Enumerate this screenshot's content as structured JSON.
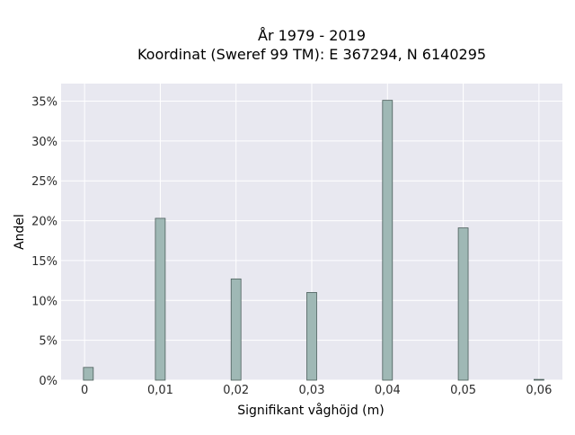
{
  "chart_data": {
    "type": "bar",
    "title_lines": [
      "År 1979 - 2019",
      "Koordinat (Sweref 99 TM): E 367294, N 6140295"
    ],
    "xlabel": "Signifikant våghöjd (m)",
    "ylabel": "Andel",
    "x_ticks": [
      {
        "value": 0,
        "label": "0"
      },
      {
        "value": 0.01,
        "label": "0,01"
      },
      {
        "value": 0.02,
        "label": "0,02"
      },
      {
        "value": 0.03,
        "label": "0,03"
      },
      {
        "value": 0.04,
        "label": "0,04"
      },
      {
        "value": 0.05,
        "label": "0,05"
      },
      {
        "value": 0.06,
        "label": "0,06"
      }
    ],
    "y_ticks": [
      {
        "value": 0,
        "label": "0%"
      },
      {
        "value": 5,
        "label": "5%"
      },
      {
        "value": 10,
        "label": "10%"
      },
      {
        "value": 15,
        "label": "15%"
      },
      {
        "value": 20,
        "label": "20%"
      },
      {
        "value": 25,
        "label": "25%"
      },
      {
        "value": 30,
        "label": "30%"
      },
      {
        "value": 35,
        "label": "35%"
      }
    ],
    "xlim": [
      -0.0031,
      0.0631
    ],
    "ylim": [
      0,
      37.2
    ],
    "bar_width": 0.0013,
    "bars": [
      {
        "x": 0.0005,
        "value": 1.6
      },
      {
        "x": 0.01,
        "value": 20.3
      },
      {
        "x": 0.02,
        "value": 12.7
      },
      {
        "x": 0.03,
        "value": 11.0
      },
      {
        "x": 0.04,
        "value": 35.1
      },
      {
        "x": 0.05,
        "value": 19.1
      },
      {
        "x": 0.06,
        "value": 0.1
      }
    ],
    "colors": {
      "plot_background": "#e8e8f0",
      "grid": "#ffffff",
      "bar_fill": "#9fb8b5",
      "bar_stroke": "#4b5e5b",
      "text": "#2b2b2b"
    },
    "grid": true,
    "legend": null
  }
}
